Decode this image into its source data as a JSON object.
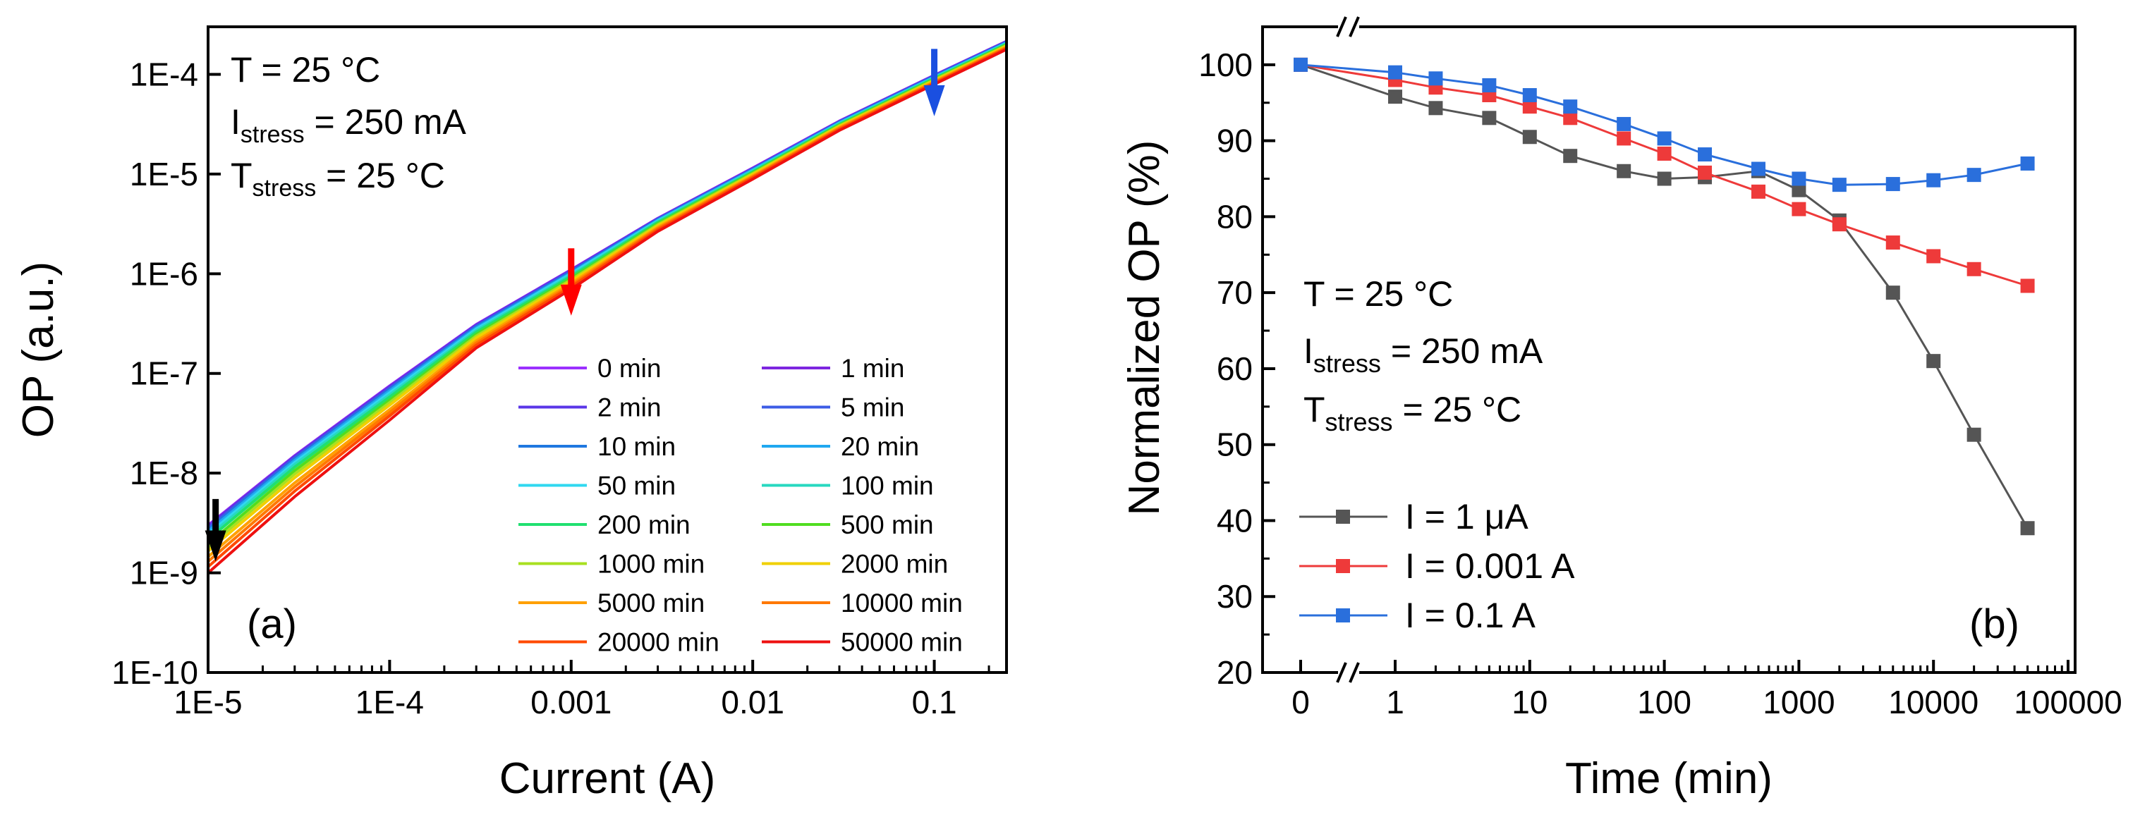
{
  "chart_data": [
    {
      "panel": "(a)",
      "type": "line",
      "xlabel": "Current (A)",
      "ylabel": "OP (a.u.)",
      "xscale": "log",
      "yscale": "log",
      "xlim": [
        1e-05,
        0.25
      ],
      "ylim": [
        1e-10,
        0.0003
      ],
      "x_ticks": [
        {
          "value": 1e-05,
          "label": "1E-5"
        },
        {
          "value": 0.0001,
          "label": "1E-4"
        },
        {
          "value": 0.001,
          "label": "0.001"
        },
        {
          "value": 0.01,
          "label": "0.01"
        },
        {
          "value": 0.1,
          "label": "0.1"
        }
      ],
      "y_ticks": [
        {
          "value": 1e-10,
          "label": "1E-10"
        },
        {
          "value": 1e-09,
          "label": "1E-9"
        },
        {
          "value": 1e-08,
          "label": "1E-8"
        },
        {
          "value": 1e-07,
          "label": "1E-7"
        },
        {
          "value": 1e-06,
          "label": "1E-6"
        },
        {
          "value": 1e-05,
          "label": "1E-5"
        },
        {
          "value": 0.0001,
          "label": "1E-4"
        }
      ],
      "annotations": {
        "line1": "T = 25 °C",
        "line2_main": "I",
        "line2_sub": "stress",
        "line2_rest": " = 250 mA",
        "line3_main": "T",
        "line3_sub": "stress",
        "line3_rest": " = 25 °C"
      },
      "arrows": [
        {
          "name": "black-arrow",
          "x": 1.1e-05,
          "y_start": 5.5e-09,
          "y_end": 1.3e-09,
          "color": "#000000"
        },
        {
          "name": "red-arrow",
          "x": 0.001,
          "y_start": 1.8e-06,
          "y_end": 3.8e-07,
          "color": "#ff0000"
        },
        {
          "name": "blue-arrow",
          "x": 0.1,
          "y_start": 0.00018,
          "y_end": 3.8e-05,
          "color": "#1a4fe0"
        }
      ],
      "curve_x": [
        1e-05,
        3e-05,
        0.0001,
        0.0003,
        0.001,
        0.003,
        0.01,
        0.03,
        0.1,
        0.25
      ],
      "series": [
        {
          "name": "0 min",
          "color": "#9b30ff",
          "values": [
            3e-09,
            1.5e-08,
            7.5e-08,
            3.1e-07,
            1.1e-06,
            3.6e-06,
            1.15e-05,
            3.4e-05,
            9.8e-05,
            0.000215
          ]
        },
        {
          "name": "1 min",
          "color": "#7d26e0",
          "values": [
            2.95e-09,
            1.48e-08,
            7.4e-08,
            3.07e-07,
            1.09e-06,
            3.58e-06,
            1.14e-05,
            3.38e-05,
            9.75e-05,
            0.000214
          ]
        },
        {
          "name": "2 min",
          "color": "#5a36e8",
          "values": [
            2.9e-09,
            1.46e-08,
            7.3e-08,
            3.04e-07,
            1.08e-06,
            3.56e-06,
            1.13e-05,
            3.36e-05,
            9.7e-05,
            0.000213
          ]
        },
        {
          "name": "5 min",
          "color": "#3d5ce6",
          "values": [
            2.8e-09,
            1.42e-08,
            7.1e-08,
            2.98e-07,
            1.06e-06,
            3.52e-06,
            1.12e-05,
            3.33e-05,
            9.6e-05,
            0.000211
          ]
        },
        {
          "name": "10 min",
          "color": "#1f78e0",
          "values": [
            2.7e-09,
            1.38e-08,
            6.9e-08,
            2.92e-07,
            1.04e-06,
            3.48e-06,
            1.11e-05,
            3.3e-05,
            9.5e-05,
            0.000209
          ]
        },
        {
          "name": "20 min",
          "color": "#20a8f0",
          "values": [
            2.6e-09,
            1.34e-08,
            6.7e-08,
            2.86e-07,
            1.02e-06,
            3.44e-06,
            1.1e-05,
            3.27e-05,
            9.4e-05,
            0.000207
          ]
        },
        {
          "name": "50 min",
          "color": "#30d8f0",
          "values": [
            2.45e-09,
            1.28e-08,
            6.4e-08,
            2.78e-07,
            1e-06,
            3.39e-06,
            1.08e-05,
            3.23e-05,
            9.3e-05,
            0.000205
          ]
        },
        {
          "name": "100 min",
          "color": "#28d8c0",
          "values": [
            2.3e-09,
            1.22e-08,
            6.1e-08,
            2.7e-07,
            9.7e-07,
            3.33e-06,
            1.07e-05,
            3.19e-05,
            9.2e-05,
            0.000203
          ]
        },
        {
          "name": "200 min",
          "color": "#20e070",
          "values": [
            2.15e-09,
            1.15e-08,
            5.8e-08,
            2.6e-07,
            9.4e-07,
            3.27e-06,
            1.05e-05,
            3.15e-05,
            9.1e-05,
            0.000201
          ]
        },
        {
          "name": "500 min",
          "color": "#50dd20",
          "values": [
            1.95e-09,
            1.06e-08,
            5.4e-08,
            2.47e-07,
            9e-07,
            3.18e-06,
            1.03e-05,
            3.1e-05,
            8.95e-05,
            0.000198
          ]
        },
        {
          "name": "1000 min",
          "color": "#a8e020",
          "values": [
            1.8e-09,
            9.8e-09,
            5.1e-08,
            2.37e-07,
            8.7e-07,
            3.1e-06,
            1.01e-05,
            3.05e-05,
            8.8e-05,
            0.000195
          ]
        },
        {
          "name": "2000 min",
          "color": "#f0d000",
          "values": [
            1.65e-09,
            9e-09,
            4.8e-08,
            2.27e-07,
            8.4e-07,
            3.02e-06,
            9.9e-06,
            3e-05,
            8.65e-05,
            0.000192
          ]
        },
        {
          "name": "5000 min",
          "color": "#ffa000",
          "values": [
            1.45e-09,
            8e-09,
            4.35e-08,
            2.12e-07,
            8e-07,
            2.92e-06,
            9.6e-06,
            2.93e-05,
            8.45e-05,
            0.000188
          ]
        },
        {
          "name": "10000 min",
          "color": "#ff7800",
          "values": [
            1.3e-09,
            7.3e-09,
            4.05e-08,
            2.02e-07,
            7.7e-07,
            2.84e-06,
            9.4e-06,
            2.87e-05,
            8.3e-05,
            0.000185
          ]
        },
        {
          "name": "20000 min",
          "color": "#ff4a00",
          "values": [
            1.15e-09,
            6.6e-09,
            3.75e-08,
            1.92e-07,
            7.4e-07,
            2.76e-06,
            9.2e-06,
            2.81e-05,
            8.15e-05,
            0.000182
          ]
        },
        {
          "name": "50000 min",
          "color": "#ee1010",
          "values": [
            1e-09,
            5.8e-09,
            3.4e-08,
            1.8e-07,
            7e-07,
            2.66e-06,
            8.9e-06,
            2.74e-05,
            7.95e-05,
            0.000178
          ]
        }
      ]
    },
    {
      "panel": "(b)",
      "type": "line",
      "xlabel": "Time (min)",
      "ylabel": "Normalized OP (%)",
      "xscale": "log (with broken axis at 0)",
      "ylim": [
        20,
        105
      ],
      "y_ticks": [
        20,
        30,
        40,
        50,
        60,
        70,
        80,
        90,
        100
      ],
      "x_ticks": [
        {
          "value": 0,
          "label": "0"
        },
        {
          "value": 1,
          "label": "1"
        },
        {
          "value": 10,
          "label": "10"
        },
        {
          "value": 100,
          "label": "100"
        },
        {
          "value": 1000,
          "label": "1000"
        },
        {
          "value": 10000,
          "label": "10000"
        },
        {
          "value": 100000,
          "label": "100000"
        }
      ],
      "annotations": {
        "line1": "T = 25 °C",
        "line2_main": "I",
        "line2_sub": "stress",
        "line2_rest": " = 250 mA",
        "line3_main": "T",
        "line3_sub": "stress",
        "line3_rest": " = 25 °C"
      },
      "x": [
        0,
        1,
        2,
        5,
        10,
        20,
        50,
        100,
        200,
        500,
        1000,
        2000,
        5000,
        10000,
        20000,
        50000
      ],
      "series": [
        {
          "name": "I = 1 μA",
          "color": "#555555",
          "values": [
            100,
            95.8,
            94.3,
            93.0,
            90.5,
            88.0,
            86.0,
            85.0,
            85.2,
            86.0,
            83.5,
            79.5,
            70.0,
            61.0,
            51.3,
            39.0
          ]
        },
        {
          "name": "I = 0.001 A",
          "color": "#ee3a3a",
          "values": [
            100,
            98.0,
            97.0,
            96.0,
            94.5,
            93.0,
            90.3,
            88.3,
            85.8,
            83.3,
            81.0,
            79.0,
            76.6,
            74.8,
            73.1,
            70.9
          ]
        },
        {
          "name": "I = 0.1 A",
          "color": "#2a6fdc",
          "values": [
            100,
            99.0,
            98.2,
            97.3,
            96.0,
            94.5,
            92.2,
            90.3,
            88.2,
            86.3,
            85.0,
            84.2,
            84.3,
            84.8,
            85.5,
            87.0
          ]
        }
      ]
    }
  ]
}
